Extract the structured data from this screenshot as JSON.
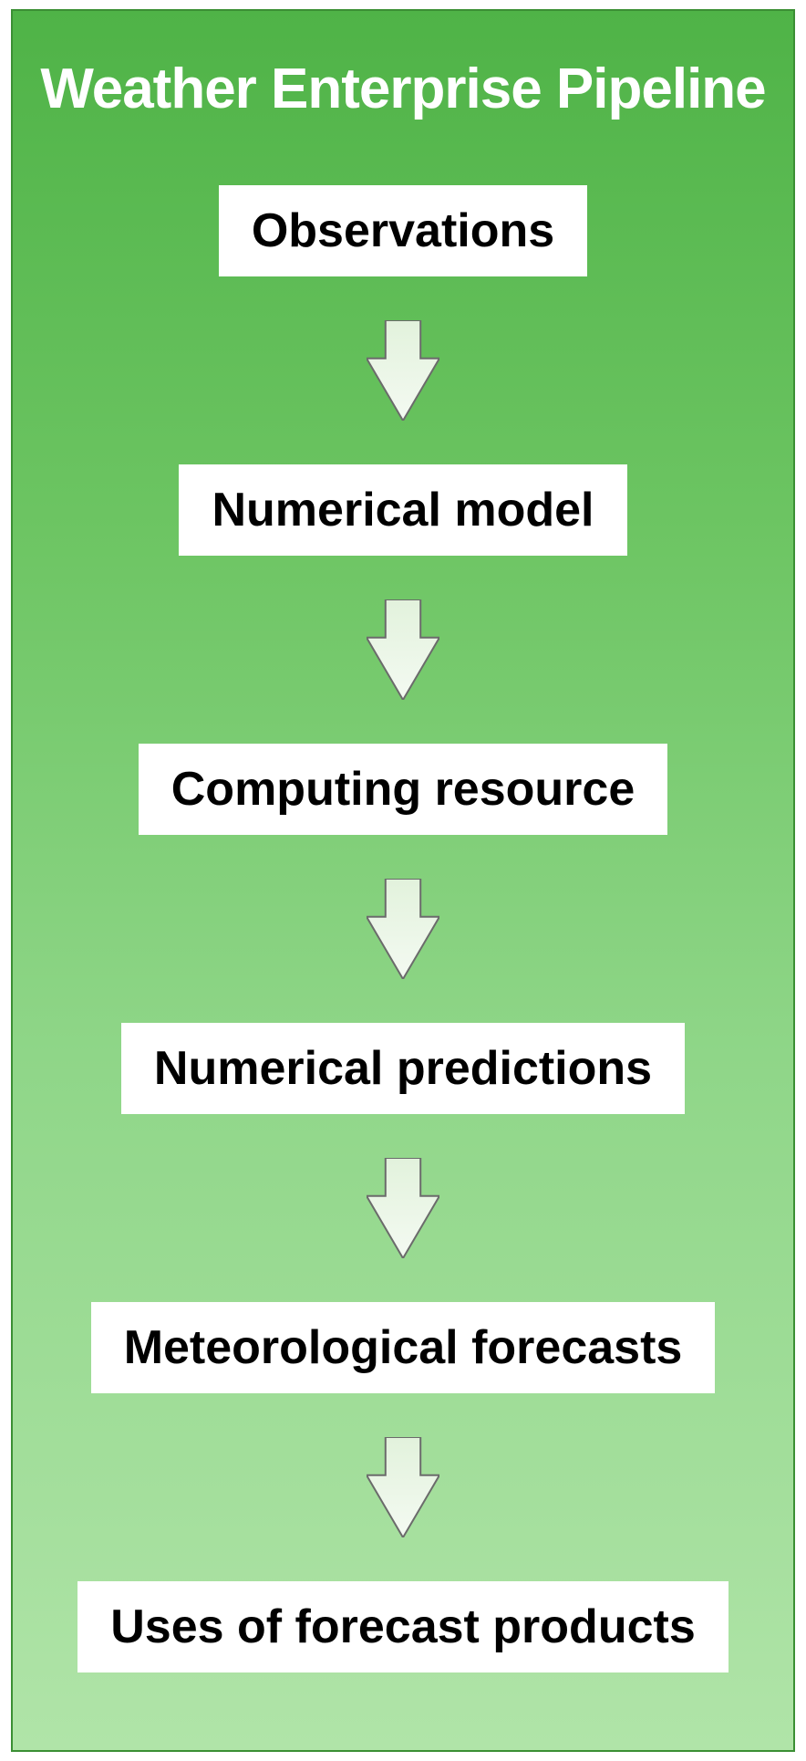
{
  "diagram": {
    "type": "flowchart",
    "title": "Weather Enterprise Pipeline",
    "title_color": "#ffffff",
    "title_fontsize": 62,
    "background_gradient_top": "#4fb347",
    "background_gradient_bottom": "#b0e4a8",
    "border_color": "#3b8f34",
    "box_background": "#ffffff",
    "box_text_color": "#000000",
    "box_fontsize": 52,
    "arrow_fill_top": "#e2f2dc",
    "arrow_fill_bottom": "#f4faf2",
    "arrow_stroke": "#6b6b6b",
    "arrow_width": 80,
    "arrow_height": 110,
    "nodes": [
      {
        "label": "Observations"
      },
      {
        "label": "Numerical model"
      },
      {
        "label": "Computing resource"
      },
      {
        "label": "Numerical predictions"
      },
      {
        "label": "Meteorological forecasts"
      },
      {
        "label": "Uses of forecast products"
      }
    ]
  }
}
